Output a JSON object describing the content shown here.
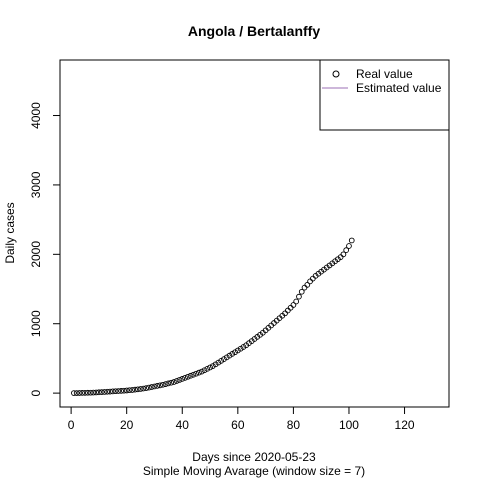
{
  "chart_data": {
    "type": "scatter",
    "title": "Angola / Bertalanffy",
    "xlabel": "Days since 2020-05-23",
    "subtitle": "Simple Moving Avarage (window size = 7)",
    "ylabel": "Daily cases",
    "xlim": [
      -4,
      136
    ],
    "ylim": [
      -200,
      4800
    ],
    "x_ticks": [
      0,
      20,
      40,
      60,
      80,
      100,
      120
    ],
    "y_ticks": [
      0,
      1000,
      2000,
      3000,
      4000
    ],
    "legend": {
      "position": "top-right",
      "entries": [
        {
          "label": "Real value",
          "marker": "circle"
        },
        {
          "label": "Estimated value",
          "marker": "line",
          "color": "#9b6fb6"
        }
      ]
    },
    "series": [
      {
        "name": "Real value",
        "x": [
          1,
          2,
          3,
          4,
          5,
          6,
          7,
          8,
          9,
          10,
          11,
          12,
          13,
          14,
          15,
          16,
          17,
          18,
          19,
          20,
          21,
          22,
          23,
          24,
          25,
          26,
          27,
          28,
          29,
          30,
          31,
          32,
          33,
          34,
          35,
          36,
          37,
          38,
          39,
          40,
          41,
          42,
          43,
          44,
          45,
          46,
          47,
          48,
          49,
          50,
          51,
          52,
          53,
          54,
          55,
          56,
          57,
          58,
          59,
          60,
          61,
          62,
          63,
          64,
          65,
          66,
          67,
          68,
          69,
          70,
          71,
          72,
          73,
          74,
          75,
          76,
          77,
          78,
          79,
          80,
          81,
          82,
          83,
          84,
          85,
          86,
          87,
          88,
          89,
          90,
          91,
          92,
          93,
          94,
          95,
          96,
          97,
          98,
          99,
          100,
          101
        ],
        "y": [
          1,
          1,
          2,
          3,
          4,
          5,
          6,
          8,
          10,
          12,
          14,
          17,
          20,
          22,
          25,
          28,
          30,
          32,
          35,
          38,
          42,
          45,
          50,
          55,
          60,
          66,
          72,
          80,
          88,
          96,
          104,
          112,
          120,
          130,
          140,
          150,
          160,
          175,
          190,
          205,
          220,
          235,
          250,
          265,
          280,
          295,
          310,
          330,
          350,
          370,
          390,
          415,
          440,
          465,
          490,
          515,
          540,
          565,
          590,
          615,
          640,
          665,
          690,
          720,
          750,
          780,
          810,
          840,
          870,
          905,
          940,
          975,
          1010,
          1045,
          1080,
          1115,
          1150,
          1190,
          1230,
          1270,
          1320,
          1390,
          1460,
          1520,
          1560,
          1610,
          1650,
          1690,
          1720,
          1750,
          1780,
          1810,
          1840,
          1870,
          1900,
          1930,
          1960,
          2000,
          2060,
          2120,
          2200
        ]
      }
    ]
  }
}
